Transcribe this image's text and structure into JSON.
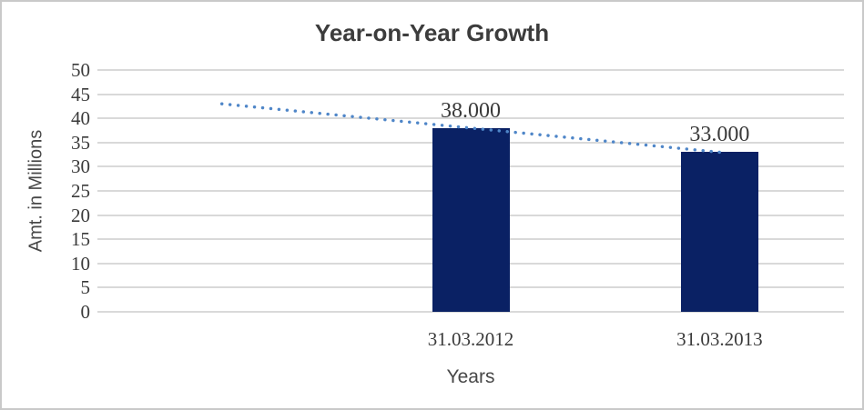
{
  "frame": {
    "background": "#ffffff",
    "border_color": "#c9c9c9"
  },
  "chart_data": {
    "type": "bar",
    "title": "Year-on-Year Growth",
    "categories": [
      "31.03.2012",
      "31.03.2013"
    ],
    "values": [
      38,
      33
    ],
    "data_labels": [
      "38.000",
      "33.000"
    ],
    "xlabel": "Years",
    "ylabel": "Amt. in Millions",
    "ylim": [
      0,
      50
    ],
    "yticks": [
      0,
      5,
      10,
      15,
      20,
      25,
      30,
      35,
      40,
      45,
      50
    ],
    "grid": true,
    "legend": "none",
    "bar_color": "#0a2164",
    "gridline_color": "#d9d9d9",
    "text_colors": {
      "title": "#3c3c3c",
      "ticks": "#3a3a3a",
      "axis_titles": "#474747",
      "data_labels": "#3a3a3a"
    },
    "trendline": {
      "type": "linear",
      "style": "dotted",
      "color": "#4f86c8",
      "start_value": 43,
      "end_value": 33
    },
    "layout_hints": {
      "leading_empty_category": true,
      "gridlines": "horizontal-only",
      "data_labels_position": "outside-end",
      "legend_position": "none"
    }
  }
}
